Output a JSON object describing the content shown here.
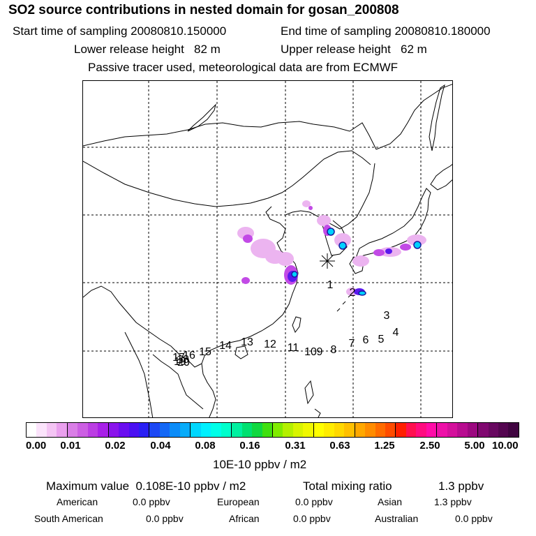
{
  "header": {
    "title": "SO2 source contributions in nested domain for gosan_200808",
    "start_label": "Start time of sampling 20080810.150000",
    "end_label": "End time of sampling 20080810.180000",
    "lower_label": "Lower release height   82 m",
    "upper_label": "Upper release height   62 m",
    "note": "Passive tracer used, meteorological data are from ECMWF"
  },
  "map": {
    "receptor": "gosan",
    "source_labels": [
      "1",
      "2",
      "3",
      "4",
      "5",
      "6",
      "7",
      "8",
      "9",
      "10",
      "11",
      "12",
      "13",
      "14",
      "15",
      "16",
      "17",
      "18",
      "19",
      "20"
    ]
  },
  "legend": {
    "ticks": [
      "0.00",
      "0.01",
      "0.02",
      "0.04",
      "0.08",
      "0.16",
      "0.31",
      "0.63",
      "1.25",
      "2.50",
      "5.00",
      "10.00"
    ],
    "unit": "10E-10 ppbv / m2",
    "segments": [
      [
        "#ffffff",
        "#fbe3fb",
        "#f4c4f4",
        "#eaa0ee"
      ],
      [
        "#d97ee6",
        "#cc5fe3",
        "#bb3ee3",
        "#a820e8"
      ],
      [
        "#8a14ec",
        "#6a0ef0",
        "#4a10f2",
        "#2a20f4"
      ],
      [
        "#1d48f5",
        "#1468f6",
        "#0c8cf8",
        "#08acf9"
      ],
      [
        "#00d7ff",
        "#00f0ff",
        "#00ffe8",
        "#00ffcc"
      ],
      [
        "#00f0a0",
        "#00e070",
        "#10d840",
        "#40e010"
      ],
      [
        "#80ec00",
        "#b4f000",
        "#d8f400",
        "#f0f800"
      ],
      [
        "#ffff00",
        "#ffec00",
        "#ffd800",
        "#ffc000"
      ],
      [
        "#ffa800",
        "#ff8c00",
        "#ff6c00",
        "#ff4c00"
      ],
      [
        "#ff2000",
        "#ff1050",
        "#ff0c80",
        "#ff0ca8"
      ],
      [
        "#ee10a8",
        "#d4109c",
        "#b80c90",
        "#9c0880"
      ],
      [
        "#800870",
        "#680860",
        "#540650",
        "#400440"
      ]
    ]
  },
  "summary": {
    "max_label": "Maximum value  0.108E-10 ppbv / m2",
    "total_label": "Total mixing ratio",
    "total_value": "1.3 ppbv",
    "american_label": "American",
    "american_value": "0.0 ppbv",
    "european_label": "European",
    "european_value": "0.0 ppbv",
    "asian_label": "Asian",
    "asian_value": "1.3 ppbv",
    "south_american_label": "South American",
    "south_american_value": "0.0 ppbv",
    "african_label": "African",
    "african_value": "0.0 ppbv",
    "australian_label": "Australian",
    "australian_value": "0.0 ppbv"
  }
}
